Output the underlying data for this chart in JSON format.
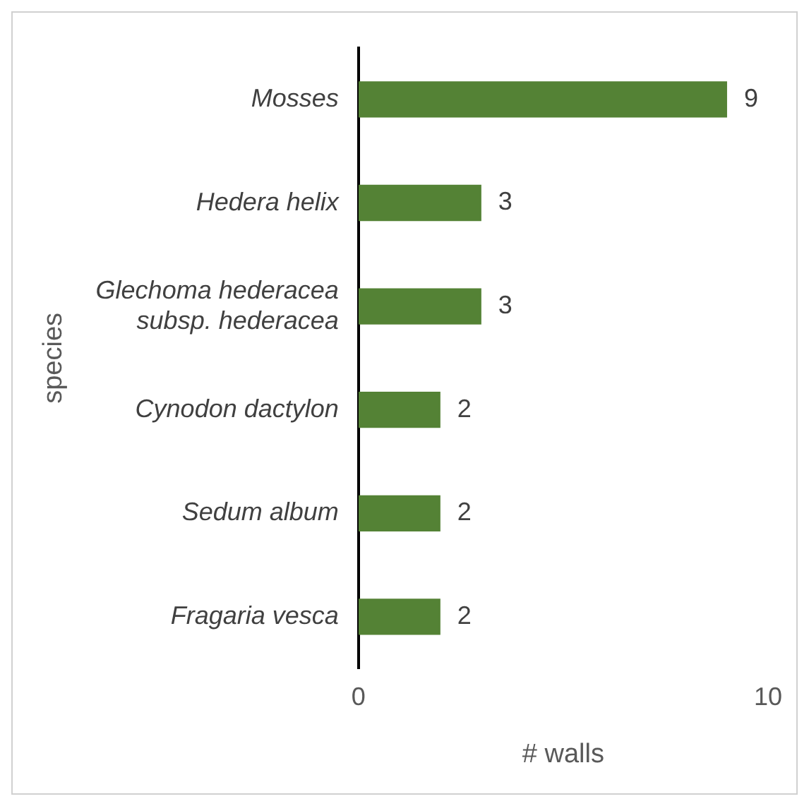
{
  "chart_data": {
    "type": "bar",
    "orientation": "horizontal",
    "categories": [
      "Mosses",
      "Hedera helix",
      "Glechoma hederacea subsp. hederacea",
      "Cynodon dactylon",
      "Sedum album",
      "Fragaria vesca"
    ],
    "values": [
      9,
      3,
      3,
      2,
      2,
      2
    ],
    "color": "#548235",
    "xlabel": "# walls",
    "ylabel": "species",
    "xlim": [
      0,
      10
    ],
    "xticks": [
      0,
      10
    ],
    "grid": false,
    "legend": false,
    "data_labels": true
  }
}
